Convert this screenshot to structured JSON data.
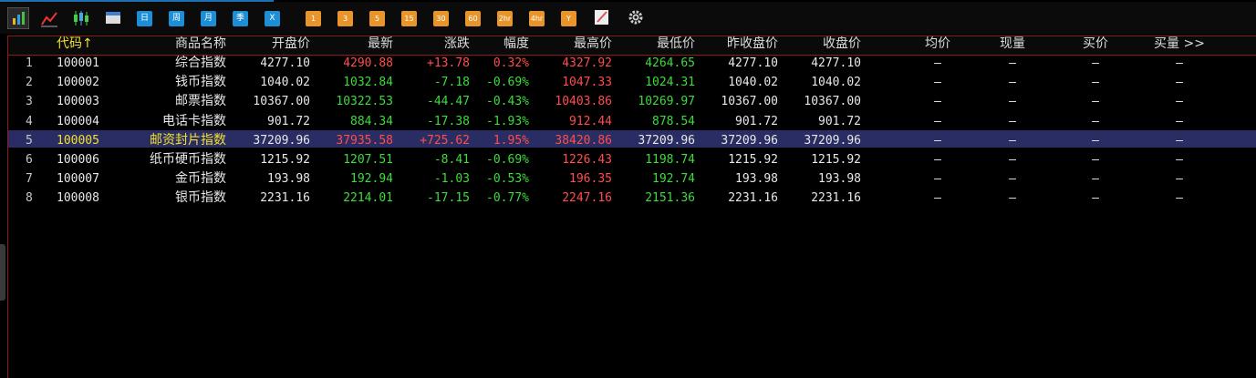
{
  "toolbar": {
    "buttons": [
      "日",
      "周",
      "月",
      "季",
      "X",
      "1",
      "3",
      "5",
      "15",
      "30",
      "60",
      "2hr",
      "4hr",
      "Y"
    ]
  },
  "table": {
    "header": [
      "代码↑",
      "商品名称",
      "开盘价",
      "最新",
      "涨跌",
      "幅度",
      "最高价",
      "最低价",
      "昨收盘价",
      "收盘价",
      "均价",
      "现量",
      "买价",
      "买量 >>"
    ],
    "rows": [
      [
        "1",
        "100001",
        "综合指数",
        "4277.10",
        "4290.88",
        "+13.78",
        "0.32%",
        "4327.92",
        "4264.65",
        "4277.10",
        "4277.10",
        "—",
        "—",
        "—",
        "—"
      ],
      [
        "2",
        "100002",
        "钱币指数",
        "1040.02",
        "1032.84",
        "-7.18",
        "-0.69%",
        "1047.33",
        "1024.31",
        "1040.02",
        "1040.02",
        "—",
        "—",
        "—",
        "—"
      ],
      [
        "3",
        "100003",
        "邮票指数",
        "10367.00",
        "10322.53",
        "-44.47",
        "-0.43%",
        "10403.86",
        "10269.97",
        "10367.00",
        "10367.00",
        "—",
        "—",
        "—",
        "—"
      ],
      [
        "4",
        "100004",
        "电话卡指数",
        "901.72",
        "884.34",
        "-17.38",
        "-1.93%",
        "912.44",
        "878.54",
        "901.72",
        "901.72",
        "—",
        "—",
        "—",
        "—"
      ],
      [
        "5",
        "100005",
        "邮资封片指数",
        "37209.96",
        "37935.58",
        "+725.62",
        "1.95%",
        "38420.86",
        "37209.96",
        "37209.96",
        "37209.96",
        "—",
        "—",
        "—",
        "—"
      ],
      [
        "6",
        "100006",
        "纸币硬币指数",
        "1215.92",
        "1207.51",
        "-8.41",
        "-0.69%",
        "1226.43",
        "1198.74",
        "1215.92",
        "1215.92",
        "—",
        "—",
        "—",
        "—"
      ],
      [
        "7",
        "100007",
        "金币指数",
        "193.98",
        "192.94",
        "-1.03",
        "-0.53%",
        "196.35",
        "192.74",
        "193.98",
        "193.98",
        "—",
        "—",
        "—",
        "—"
      ],
      [
        "8",
        "100008",
        "银币指数",
        "2231.16",
        "2214.01",
        "-17.15",
        "-0.77%",
        "2247.16",
        "2151.36",
        "2231.16",
        "2231.16",
        "—",
        "—",
        "—",
        "—"
      ]
    ]
  }
}
